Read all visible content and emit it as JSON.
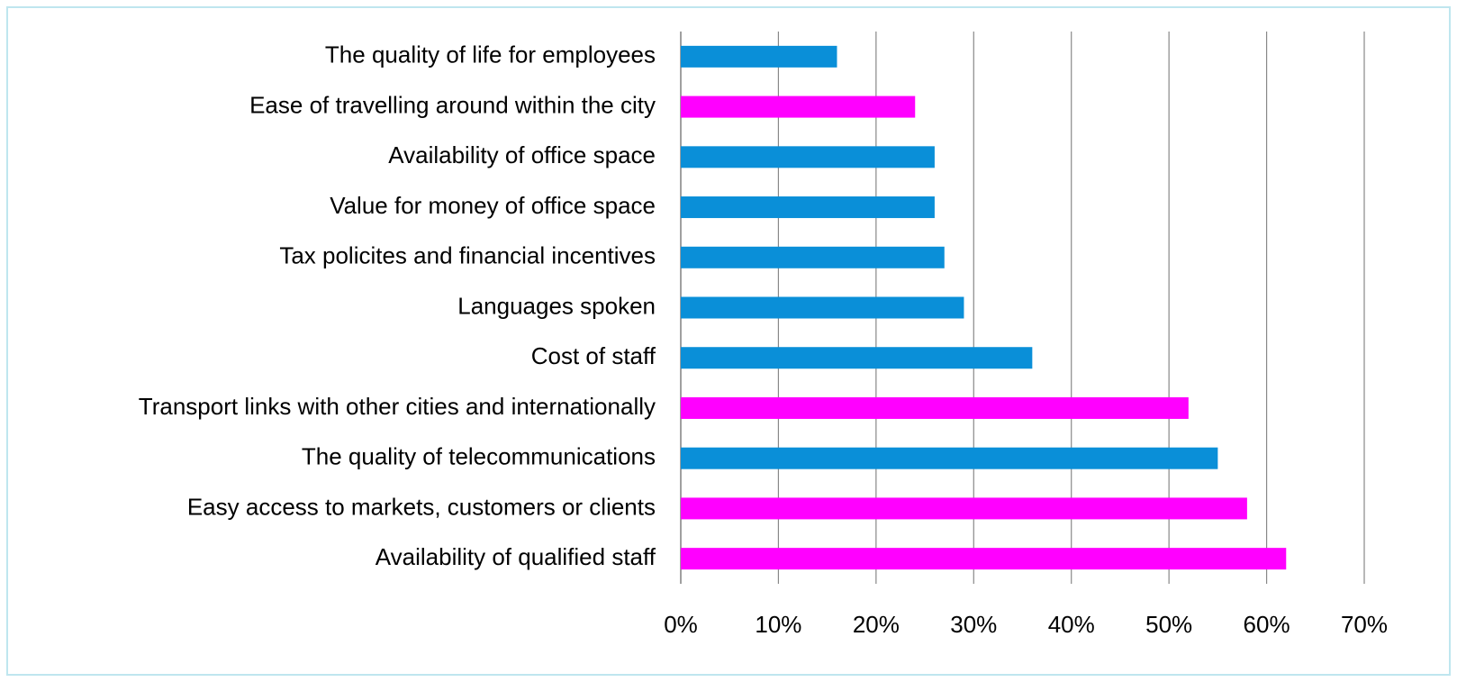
{
  "chart_data": {
    "type": "hbar",
    "categories": [
      "The quality of life for employees",
      "Ease of travelling around within the city",
      "Availability of office space",
      "Value for money of office space",
      "Tax policites and financial incentives",
      "Languages spoken",
      "Cost of staff",
      "Transport links with other cities and internationally",
      "The quality of telecommunications",
      "Easy access to markets, customers or clients",
      "Availability of qualified staff"
    ],
    "values": [
      16,
      24,
      26,
      26,
      27,
      29,
      36,
      52,
      55,
      58,
      62
    ],
    "colors": [
      "#0a8fd8",
      "#ff00ff",
      "#0a8fd8",
      "#0a8fd8",
      "#0a8fd8",
      "#0a8fd8",
      "#0a8fd8",
      "#ff00ff",
      "#0a8fd8",
      "#ff00ff",
      "#ff00ff"
    ],
    "xlim": [
      0,
      70
    ],
    "xticks": [
      {
        "value": 0,
        "label": "0%"
      },
      {
        "value": 10,
        "label": "10%"
      },
      {
        "value": 20,
        "label": "20%"
      },
      {
        "value": 30,
        "label": "30%"
      },
      {
        "value": 40,
        "label": "40%"
      },
      {
        "value": 50,
        "label": "50%"
      },
      {
        "value": 60,
        "label": "60%"
      },
      {
        "value": 70,
        "label": "70%"
      }
    ],
    "grid": true
  }
}
